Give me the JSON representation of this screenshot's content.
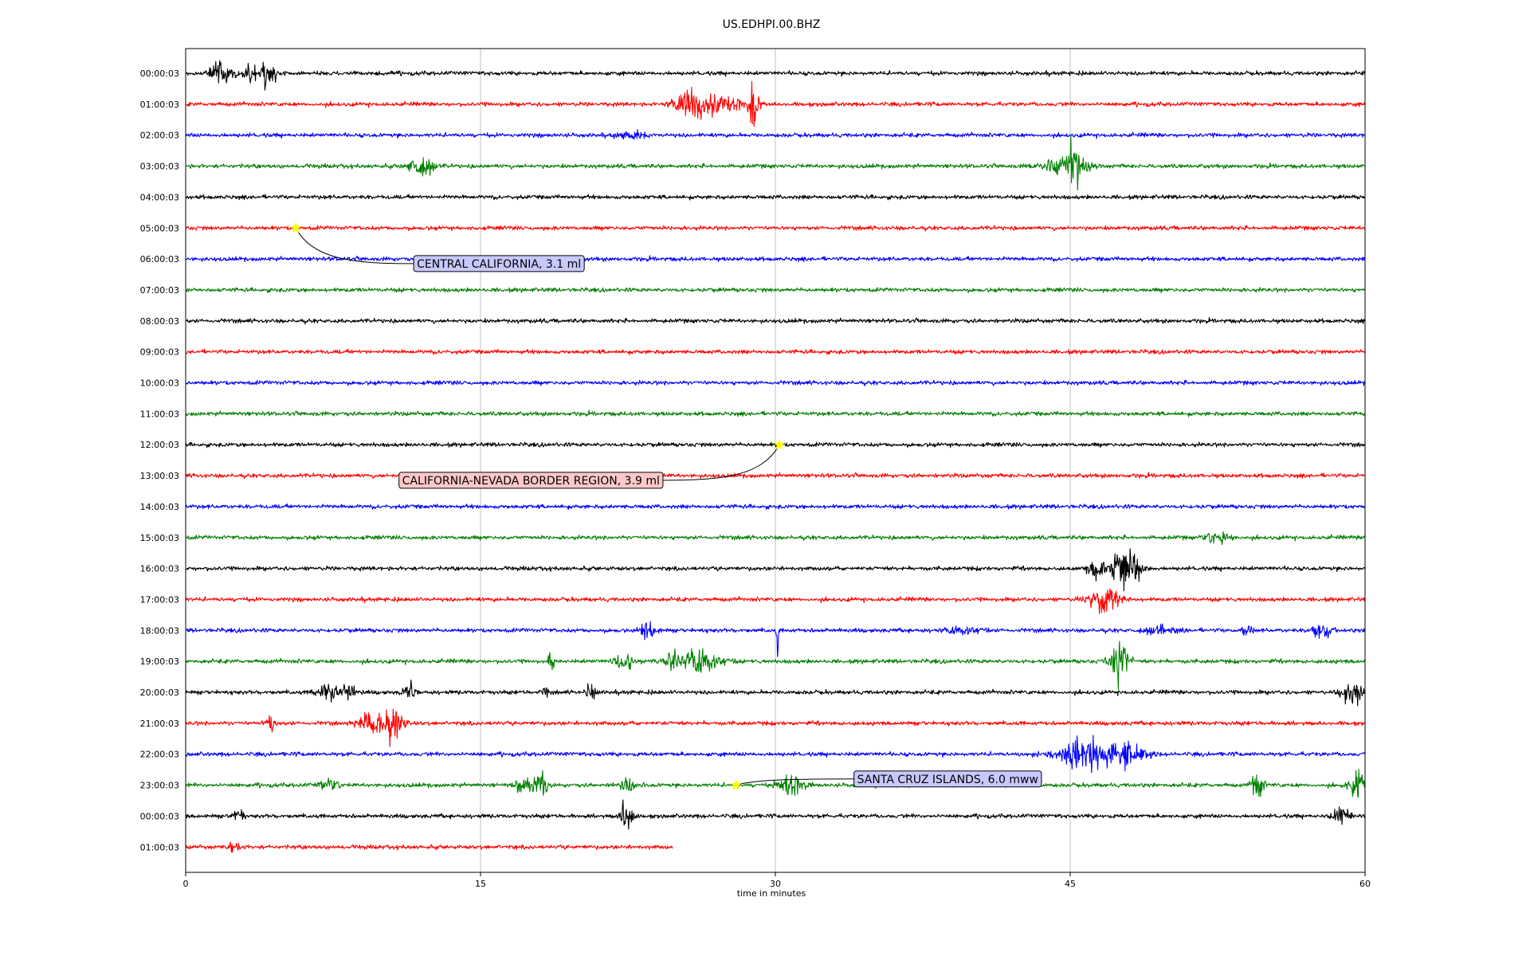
{
  "chart_data": {
    "type": "line",
    "title": "US.EDHPI.00.BHZ",
    "xlabel": "time in minutes",
    "ylabel": "",
    "xlim": [
      0,
      60
    ],
    "xticks": [
      0,
      15,
      30,
      45,
      60
    ],
    "grid": "vertical",
    "row_colors": [
      "#000000",
      "#ff0000",
      "#0000ff",
      "#008000"
    ],
    "rows": [
      {
        "label": "00:00:03",
        "end": 60,
        "bursts": [
          [
            1.8,
            0.35,
            1.0
          ],
          [
            3.2,
            0.25,
            0.5
          ],
          [
            4.2,
            0.3,
            0.8
          ]
        ]
      },
      {
        "label": "01:00:03",
        "end": 60,
        "bursts": [
          [
            25.8,
            0.6,
            1.1
          ],
          [
            27.5,
            0.8,
            0.6
          ],
          [
            28.9,
            0.15,
            1.6
          ]
        ]
      },
      {
        "label": "02:00:03",
        "end": 60,
        "bursts": [
          [
            22.8,
            0.4,
            0.3
          ]
        ]
      },
      {
        "label": "03:00:03",
        "end": 60,
        "bursts": [
          [
            12.0,
            0.4,
            0.8
          ],
          [
            44.8,
            0.7,
            0.9
          ],
          [
            45.2,
            0.15,
            2.0
          ]
        ]
      },
      {
        "label": "04:00:03",
        "end": 60,
        "bursts": []
      },
      {
        "label": "05:00:03",
        "end": 60,
        "bursts": []
      },
      {
        "label": "06:00:03",
        "end": 60,
        "bursts": []
      },
      {
        "label": "07:00:03",
        "end": 60,
        "bursts": []
      },
      {
        "label": "08:00:03",
        "end": 60,
        "bursts": []
      },
      {
        "label": "09:00:03",
        "end": 60,
        "bursts": []
      },
      {
        "label": "10:00:03",
        "end": 60,
        "bursts": []
      },
      {
        "label": "11:00:03",
        "end": 60,
        "bursts": []
      },
      {
        "label": "12:00:03",
        "end": 60,
        "bursts": []
      },
      {
        "label": "13:00:03",
        "end": 60,
        "bursts": []
      },
      {
        "label": "14:00:03",
        "end": 60,
        "bursts": []
      },
      {
        "label": "15:00:03",
        "end": 60,
        "bursts": [
          [
            52.5,
            0.4,
            0.4
          ]
        ]
      },
      {
        "label": "16:00:03",
        "end": 60,
        "bursts": [
          [
            46.5,
            0.4,
            0.6
          ],
          [
            47.8,
            0.5,
            1.4
          ]
        ]
      },
      {
        "label": "17:00:03",
        "end": 60,
        "bursts": [
          [
            46.8,
            0.5,
            0.9
          ]
        ]
      },
      {
        "label": "18:00:03",
        "end": 60,
        "bursts": [
          [
            23.5,
            0.3,
            0.6
          ],
          [
            30.1,
            0.05,
            -1.1
          ],
          [
            39.5,
            0.5,
            0.3
          ],
          [
            49.5,
            0.5,
            0.3
          ],
          [
            54.0,
            0.2,
            0.5
          ],
          [
            57.8,
            0.3,
            0.6
          ]
        ]
      },
      {
        "label": "19:00:03",
        "end": 60,
        "bursts": [
          [
            18.6,
            0.15,
            0.5
          ],
          [
            22.3,
            0.3,
            0.7
          ],
          [
            24.8,
            0.3,
            0.8
          ],
          [
            26.2,
            0.6,
            1.0
          ],
          [
            47.5,
            0.3,
            2.0
          ]
        ]
      },
      {
        "label": "20:00:03",
        "end": 60,
        "bursts": [
          [
            7.2,
            0.3,
            0.8
          ],
          [
            8.2,
            0.3,
            0.6
          ],
          [
            11.4,
            0.2,
            0.5
          ],
          [
            18.3,
            0.1,
            0.5
          ],
          [
            20.6,
            0.2,
            0.5
          ],
          [
            59.3,
            0.4,
            0.8
          ]
        ]
      },
      {
        "label": "21:00:03",
        "end": 60,
        "bursts": [
          [
            4.3,
            0.2,
            0.5
          ],
          [
            9.5,
            0.5,
            0.8
          ],
          [
            10.5,
            0.4,
            1.0
          ]
        ]
      },
      {
        "label": "22:00:03",
        "end": 60,
        "bursts": [
          [
            46.0,
            1.2,
            1.0
          ],
          [
            48.0,
            0.6,
            0.6
          ]
        ]
      },
      {
        "label": "23:00:03",
        "end": 60,
        "bursts": [
          [
            7.3,
            0.3,
            0.4
          ],
          [
            17.5,
            0.5,
            0.6
          ],
          [
            18.2,
            0.15,
            1.0
          ],
          [
            22.5,
            0.3,
            0.4
          ],
          [
            30.8,
            0.4,
            1.0
          ],
          [
            54.5,
            0.2,
            1.0
          ],
          [
            59.6,
            0.3,
            0.8
          ]
        ]
      },
      {
        "label": "00:00:03",
        "end": 60,
        "bursts": [
          [
            2.7,
            0.2,
            0.4
          ],
          [
            22.4,
            0.2,
            1.1
          ],
          [
            58.8,
            0.3,
            0.6
          ]
        ]
      },
      {
        "label": "01:00:03",
        "end": 24.8,
        "bursts": [
          [
            2.5,
            0.2,
            0.4
          ]
        ]
      }
    ],
    "events": [
      {
        "text": "CENTRAL CALIFORNIA, 3.1 ml",
        "row": 5,
        "minute": 5.6,
        "box_color": "#c8c8ff"
      },
      {
        "text": "CALIFORNIA-NEVADA BORDER REGION, 3.9 ml",
        "row": 12,
        "minute": 30.2,
        "box_color": "#ffc8c8"
      },
      {
        "text": "SANTA CRUZ ISLANDS, 6.0 mww",
        "row": 23,
        "minute": 28.0,
        "box_color": "#c8c8ff"
      }
    ]
  }
}
